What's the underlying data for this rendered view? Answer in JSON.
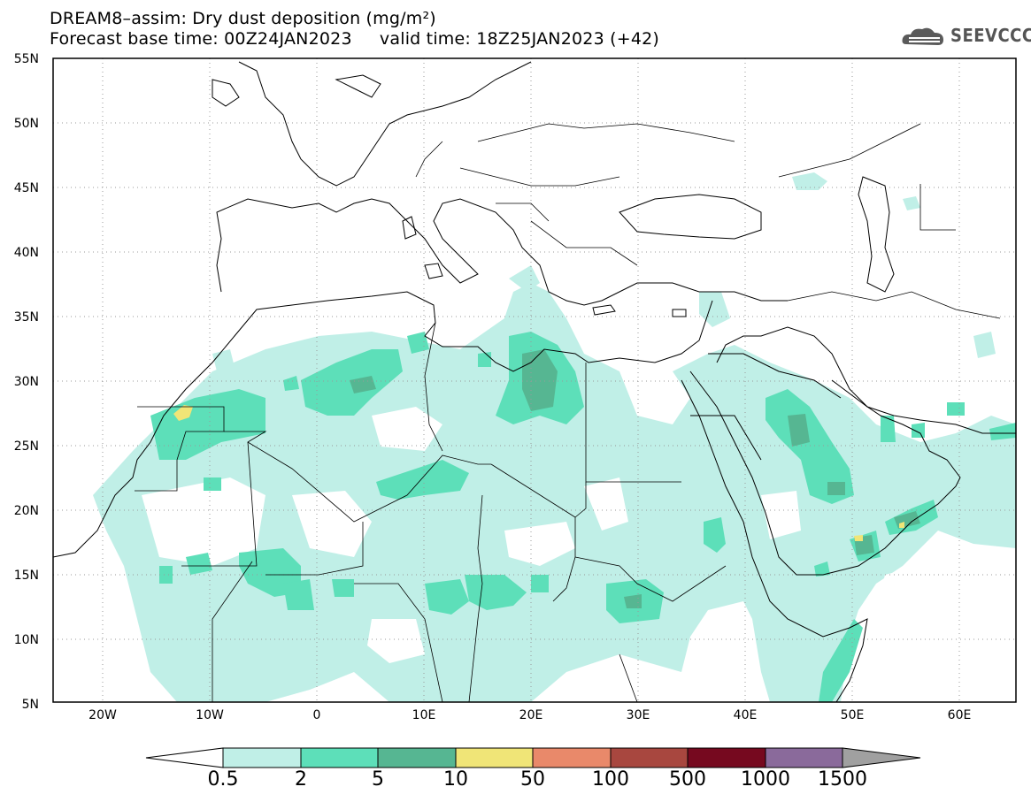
{
  "title": {
    "line1": "DREAM8–assim: Dry dust deposition (mg/m²)",
    "line2": "Forecast base time: 00Z24JAN2023     valid time: 18Z25JAN2023 (+42)"
  },
  "logo": {
    "text": "SEEVCCC",
    "icon": "cloud-logo-icon"
  },
  "map": {
    "lon_range": [
      -25,
      65
    ],
    "lat_range": [
      5,
      55
    ],
    "grid": "dotted",
    "lat_ticks": [
      "55N",
      "50N",
      "45N",
      "40N",
      "35N",
      "30N",
      "25N",
      "20N",
      "15N",
      "10N",
      "5N"
    ],
    "lon_ticks": [
      "20W",
      "10W",
      "0",
      "10E",
      "20E",
      "30E",
      "40E",
      "50E",
      "60E"
    ]
  },
  "legend": {
    "levels": [
      "0.5",
      "2",
      "5",
      "10",
      "50",
      "100",
      "500",
      "1000",
      "1500"
    ],
    "colors": [
      "#c0efe7",
      "#5ddfb9",
      "#56b692",
      "#f0e577",
      "#e9896a",
      "#a8473f",
      "#76091f",
      "#8a6a9b",
      "#a0a0a0"
    ],
    "below_color": "#ffffff"
  }
}
